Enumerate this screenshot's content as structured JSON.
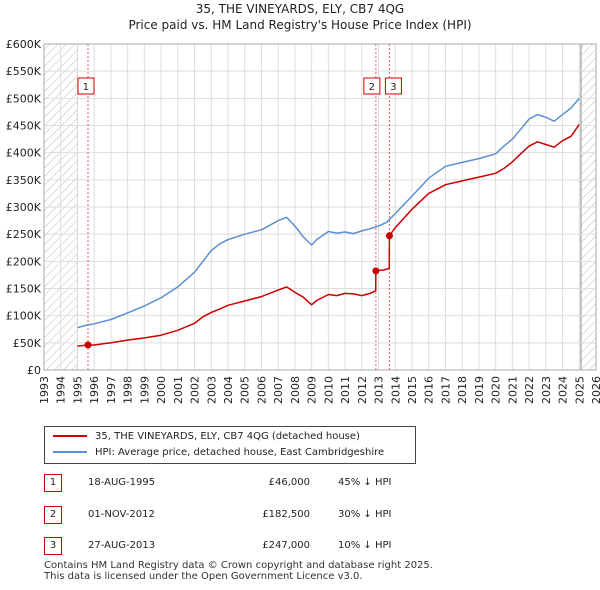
{
  "title_line1": "35, THE VINEYARDS, ELY, CB7 4QG",
  "title_line2": "Price paid vs. HM Land Registry's House Price Index (HPI)",
  "chart_data": {
    "type": "line",
    "xlim": [
      1993,
      2026
    ],
    "ylim": [
      0,
      600000
    ],
    "x_ticks": [
      "1993",
      "1994",
      "1995",
      "1996",
      "1997",
      "1998",
      "1999",
      "2000",
      "2001",
      "2002",
      "2003",
      "2004",
      "2005",
      "2006",
      "2007",
      "2008",
      "2009",
      "2010",
      "2011",
      "2012",
      "2013",
      "2014",
      "2015",
      "2016",
      "2017",
      "2018",
      "2019",
      "2020",
      "2021",
      "2022",
      "2023",
      "2024",
      "2025",
      "2026"
    ],
    "y_ticks": [
      {
        "value": 0,
        "label": "£0"
      },
      {
        "value": 50000,
        "label": "£50K"
      },
      {
        "value": 100000,
        "label": "£100K"
      },
      {
        "value": 150000,
        "label": "£150K"
      },
      {
        "value": 200000,
        "label": "£200K"
      },
      {
        "value": 250000,
        "label": "£250K"
      },
      {
        "value": 300000,
        "label": "£300K"
      },
      {
        "value": 350000,
        "label": "£350K"
      },
      {
        "value": 400000,
        "label": "£400K"
      },
      {
        "value": 450000,
        "label": "£450K"
      },
      {
        "value": 500000,
        "label": "£500K"
      },
      {
        "value": 550000,
        "label": "£550K"
      },
      {
        "value": 600000,
        "label": "£600K"
      }
    ],
    "hatched_ranges": [
      [
        1993,
        1995
      ],
      [
        2025.1,
        2026
      ]
    ],
    "series": [
      {
        "name": "35, THE VINEYARDS, ELY, CB7 4QG (detached house)",
        "color": "#cc0000",
        "x": [
          1995.0,
          1995.6,
          1996.0,
          1997.0,
          1998.0,
          1999.0,
          2000.0,
          2001.0,
          2002.0,
          2002.5,
          2003.0,
          2003.5,
          2004.0,
          2005.0,
          2006.0,
          2007.0,
          2007.5,
          2008.0,
          2008.5,
          2009.0,
          2009.3,
          2010.0,
          2010.5,
          2011.0,
          2011.5,
          2012.0,
          2012.5,
          2012.83,
          2012.84,
          2013.3,
          2013.64,
          2013.65,
          2014.0,
          2015.0,
          2016.0,
          2017.0,
          2018.0,
          2019.0,
          2020.0,
          2020.5,
          2021.0,
          2021.5,
          2022.0,
          2022.5,
          2023.0,
          2023.5,
          2024.0,
          2024.5,
          2025.0
        ],
        "y": [
          44000,
          46000,
          46000,
          50000,
          55000,
          59000,
          64000,
          73000,
          86000,
          98000,
          106000,
          112000,
          119000,
          127000,
          135000,
          147000,
          153000,
          143000,
          134000,
          120000,
          128000,
          139000,
          137000,
          141000,
          140000,
          137000,
          141000,
          146000,
          182500,
          184000,
          187000,
          247000,
          262000,
          296000,
          325000,
          341000,
          348000,
          355000,
          362000,
          371000,
          383000,
          398000,
          412000,
          420000,
          415000,
          410000,
          422000,
          430000,
          452000
        ]
      },
      {
        "name": "HPI: Average price, detached house, East Cambridgeshire",
        "color": "#5b8fd1",
        "x": [
          1995.0,
          1995.5,
          1996.0,
          1997.0,
          1998.0,
          1999.0,
          2000.0,
          2001.0,
          2002.0,
          2002.5,
          2003.0,
          2003.5,
          2004.0,
          2005.0,
          2006.0,
          2007.0,
          2007.5,
          2008.0,
          2008.5,
          2009.0,
          2009.3,
          2010.0,
          2010.5,
          2011.0,
          2011.5,
          2012.0,
          2012.5,
          2013.0,
          2013.5,
          2014.0,
          2015.0,
          2016.0,
          2017.0,
          2018.0,
          2019.0,
          2020.0,
          2020.5,
          2021.0,
          2021.5,
          2022.0,
          2022.5,
          2023.0,
          2023.5,
          2024.0,
          2024.5,
          2025.0
        ],
        "y": [
          78000,
          82000,
          85000,
          93000,
          105000,
          118000,
          133000,
          153000,
          180000,
          200000,
          220000,
          232000,
          240000,
          250000,
          258000,
          275000,
          281000,
          265000,
          245000,
          230000,
          240000,
          255000,
          252000,
          254000,
          251000,
          256000,
          260000,
          265000,
          272000,
          288000,
          320000,
          353000,
          375000,
          382000,
          389000,
          398000,
          412000,
          425000,
          443000,
          462000,
          470000,
          465000,
          458000,
          470000,
          482000,
          500000
        ]
      }
    ],
    "transactions": [
      {
        "label": "1",
        "x": 1995.63,
        "y": 46000
      },
      {
        "label": "2",
        "x": 2012.84,
        "y": 182500
      },
      {
        "label": "3",
        "x": 2013.65,
        "y": 247000
      }
    ]
  },
  "legend": [
    {
      "label": "35, THE VINEYARDS, ELY, CB7 4QG (detached house)",
      "color": "#cc0000"
    },
    {
      "label": "HPI: Average price, detached house, East Cambridgeshire",
      "color": "#5b8fd1"
    }
  ],
  "transactions_table": [
    {
      "badge": "1",
      "date": "18-AUG-1995",
      "price": "£46,000",
      "hpi": "45% ↓ HPI"
    },
    {
      "badge": "2",
      "date": "01-NOV-2012",
      "price": "£182,500",
      "hpi": "30% ↓ HPI"
    },
    {
      "badge": "3",
      "date": "27-AUG-2013",
      "price": "£247,000",
      "hpi": "10% ↓ HPI"
    }
  ],
  "footer_line1": "Contains HM Land Registry data © Crown copyright and database right 2025.",
  "footer_line2": "This data is licensed under the Open Government Licence v3.0."
}
